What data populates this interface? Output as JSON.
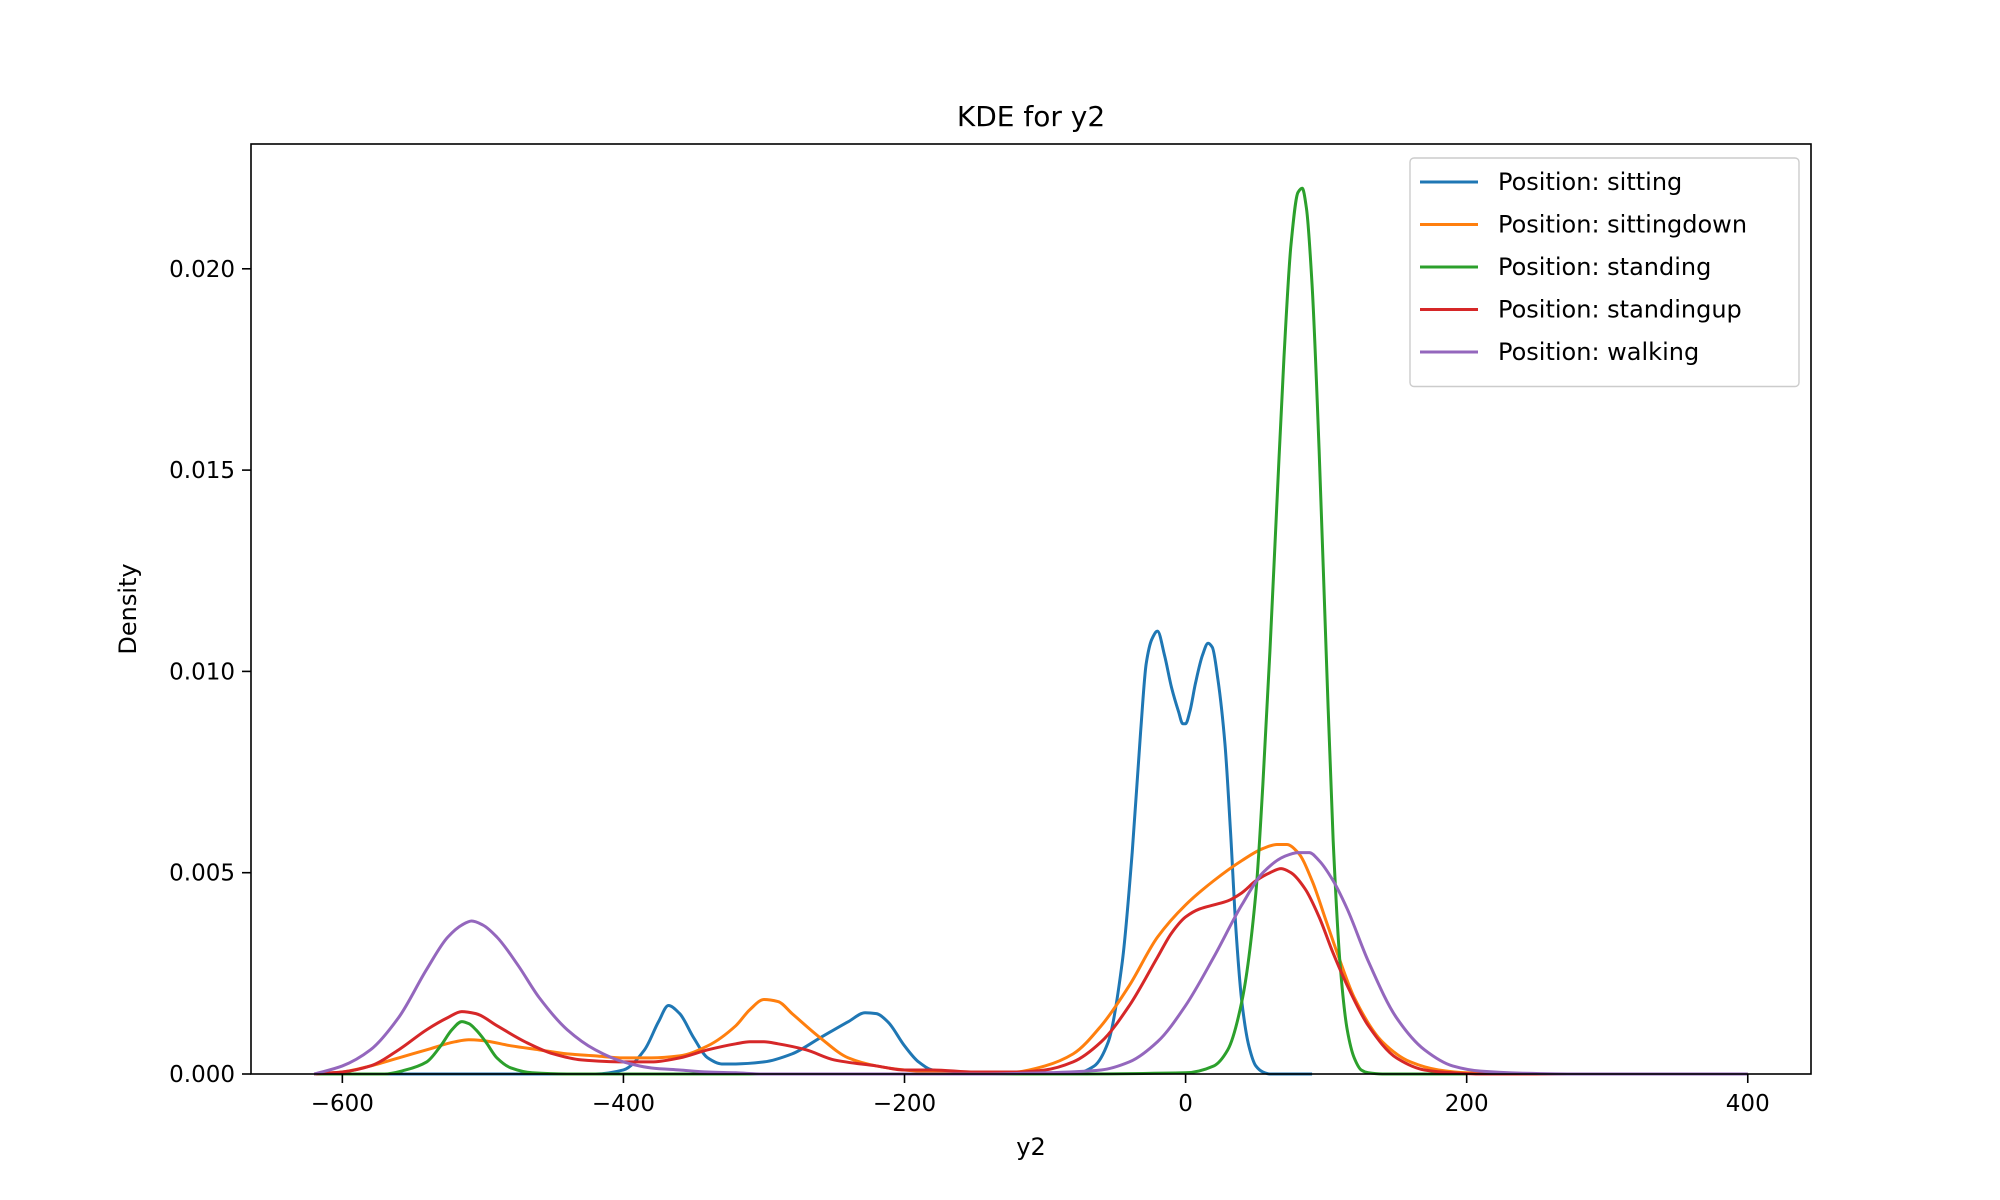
{
  "chart_data": {
    "type": "line",
    "title": "KDE for y2",
    "xlabel": "y2",
    "ylabel": "Density",
    "xlim": [
      -665,
      445
    ],
    "ylim": [
      0,
      0.0231
    ],
    "xticks": [
      -600,
      -400,
      -200,
      0,
      200,
      400
    ],
    "xtick_labels": [
      "−600",
      "−400",
      "−200",
      "0",
      "200",
      "400"
    ],
    "yticks": [
      0.0,
      0.005,
      0.01,
      0.015,
      0.02
    ],
    "ytick_labels": [
      "0.000",
      "0.005",
      "0.010",
      "0.015",
      "0.020"
    ],
    "grid": false,
    "legend_position": "top-right",
    "series": [
      {
        "name": "Position: sitting",
        "color": "#1f77b4",
        "x": [
          -620,
          -520,
          -460,
          -420,
          -400,
          -385,
          -375,
          -368,
          -360,
          -350,
          -340,
          -330,
          -320,
          -300,
          -280,
          -260,
          -240,
          -228,
          -220,
          -212,
          -200,
          -190,
          -180,
          -150,
          -100,
          -80,
          -65,
          -55,
          -45,
          -38,
          -32,
          -28,
          -24,
          -20,
          -15,
          -10,
          -5,
          -2,
          0,
          3,
          7,
          12,
          16,
          19,
          23,
          28,
          32,
          36,
          40,
          45,
          50,
          55,
          60,
          70,
          90
        ],
        "y": [
          0.0,
          0.0,
          0.0,
          0.0,
          0.0001,
          0.0006,
          0.0013,
          0.0017,
          0.0015,
          0.0009,
          0.0004,
          0.00025,
          0.00025,
          0.0003,
          0.0005,
          0.0009,
          0.0013,
          0.00152,
          0.0015,
          0.0013,
          0.0007,
          0.0003,
          0.0001,
          0.0,
          0.0,
          0.0,
          0.0002,
          0.0008,
          0.0028,
          0.0055,
          0.0085,
          0.0102,
          0.0108,
          0.011,
          0.0104,
          0.0096,
          0.009,
          0.0087,
          0.0087,
          0.009,
          0.0097,
          0.0104,
          0.0107,
          0.0106,
          0.0098,
          0.0082,
          0.006,
          0.0035,
          0.0018,
          0.0007,
          0.0002,
          5e-05,
          0.0,
          0.0,
          0.0
        ]
      },
      {
        "name": "Position: sittingdown",
        "color": "#ff7f0e",
        "x": [
          -620,
          -600,
          -580,
          -560,
          -540,
          -520,
          -510,
          -500,
          -480,
          -460,
          -440,
          -420,
          -400,
          -380,
          -360,
          -340,
          -320,
          -310,
          -300,
          -290,
          -280,
          -260,
          -240,
          -220,
          -200,
          -180,
          -150,
          -120,
          -100,
          -80,
          -60,
          -40,
          -20,
          0,
          20,
          40,
          55,
          65,
          72,
          80,
          90,
          100,
          110,
          120,
          140,
          160,
          180,
          200,
          240,
          300,
          400
        ],
        "y": [
          0.0,
          5e-05,
          0.0002,
          0.0004,
          0.0006,
          0.0008,
          0.00085,
          0.00083,
          0.0007,
          0.0006,
          0.0005,
          0.00045,
          0.0004,
          0.0004,
          0.00045,
          0.0007,
          0.0012,
          0.0016,
          0.00185,
          0.0018,
          0.0015,
          0.0009,
          0.0004,
          0.0002,
          0.0001,
          5e-05,
          0.0,
          5e-05,
          0.0002,
          0.0005,
          0.0012,
          0.0022,
          0.0034,
          0.0042,
          0.0048,
          0.0053,
          0.0056,
          0.0057,
          0.0057,
          0.0055,
          0.0048,
          0.0038,
          0.0028,
          0.0019,
          0.0008,
          0.0003,
          0.0001,
          3e-05,
          0.0,
          0.0,
          0.0
        ]
      },
      {
        "name": "Position: standing",
        "color": "#2ca02c",
        "x": [
          -620,
          -570,
          -555,
          -540,
          -530,
          -522,
          -515,
          -510,
          -505,
          -498,
          -490,
          -480,
          -465,
          -440,
          -300,
          -100,
          0,
          20,
          30,
          40,
          50,
          55,
          60,
          65,
          70,
          75,
          80,
          83,
          86,
          90,
          95,
          100,
          105,
          110,
          115,
          120,
          125,
          130,
          140,
          160,
          200
        ],
        "y": [
          0.0,
          0.0,
          0.0001,
          0.0003,
          0.0007,
          0.0011,
          0.0013,
          0.00125,
          0.0011,
          0.0008,
          0.0004,
          0.00015,
          3e-05,
          0.0,
          0.0,
          0.0,
          3e-05,
          0.0002,
          0.0006,
          0.0018,
          0.0045,
          0.0072,
          0.0105,
          0.0142,
          0.0178,
          0.0206,
          0.0219,
          0.022,
          0.0215,
          0.0196,
          0.0155,
          0.0105,
          0.0058,
          0.0027,
          0.0011,
          0.0004,
          0.0001,
          3e-05,
          0.0,
          0.0,
          0.0
        ]
      },
      {
        "name": "Position: standingup",
        "color": "#d62728",
        "x": [
          -620,
          -600,
          -580,
          -560,
          -540,
          -525,
          -515,
          -505,
          -490,
          -470,
          -450,
          -430,
          -400,
          -380,
          -360,
          -340,
          -320,
          -310,
          -300,
          -290,
          -270,
          -250,
          -220,
          -200,
          -180,
          -150,
          -120,
          -100,
          -80,
          -60,
          -40,
          -20,
          -10,
          0,
          10,
          20,
          30,
          40,
          50,
          60,
          68,
          75,
          85,
          95,
          105,
          115,
          130,
          150,
          170,
          190,
          210,
          250,
          300
        ],
        "y": [
          0.0,
          5e-05,
          0.0002,
          0.0006,
          0.0011,
          0.0014,
          0.00155,
          0.0015,
          0.0012,
          0.0008,
          0.0005,
          0.00035,
          0.0003,
          0.0003,
          0.0004,
          0.0006,
          0.00075,
          0.0008,
          0.0008,
          0.00075,
          0.0006,
          0.00035,
          0.0002,
          0.0001,
          0.0001,
          5e-05,
          5e-05,
          0.0001,
          0.0003,
          0.0008,
          0.0017,
          0.0029,
          0.0035,
          0.0039,
          0.0041,
          0.0042,
          0.0043,
          0.0045,
          0.0048,
          0.005,
          0.0051,
          0.005,
          0.0046,
          0.0039,
          0.003,
          0.0022,
          0.0012,
          0.0004,
          0.0001,
          3e-05,
          0.0,
          0.0,
          0.0
        ]
      },
      {
        "name": "Position: walking",
        "color": "#9467bd",
        "x": [
          -620,
          -600,
          -580,
          -560,
          -540,
          -525,
          -515,
          -508,
          -500,
          -490,
          -475,
          -460,
          -440,
          -420,
          -400,
          -380,
          -360,
          -340,
          -320,
          -300,
          -250,
          -200,
          -150,
          -100,
          -60,
          -40,
          -20,
          0,
          20,
          40,
          55,
          70,
          80,
          88,
          95,
          105,
          115,
          130,
          150,
          170,
          190,
          210,
          240,
          280,
          400
        ],
        "y": [
          0.0,
          0.0002,
          0.0006,
          0.0014,
          0.0026,
          0.0034,
          0.0037,
          0.0038,
          0.0037,
          0.0034,
          0.0027,
          0.0019,
          0.0011,
          0.0006,
          0.0003,
          0.00015,
          0.0001,
          5e-05,
          3e-05,
          0.0,
          0.0,
          0.0,
          0.0,
          3e-05,
          0.0001,
          0.0003,
          0.0008,
          0.0017,
          0.0029,
          0.0042,
          0.005,
          0.0054,
          0.0055,
          0.0055,
          0.0053,
          0.0048,
          0.0041,
          0.0028,
          0.0014,
          0.0006,
          0.0002,
          7e-05,
          2e-05,
          0.0,
          0.0
        ]
      }
    ]
  }
}
